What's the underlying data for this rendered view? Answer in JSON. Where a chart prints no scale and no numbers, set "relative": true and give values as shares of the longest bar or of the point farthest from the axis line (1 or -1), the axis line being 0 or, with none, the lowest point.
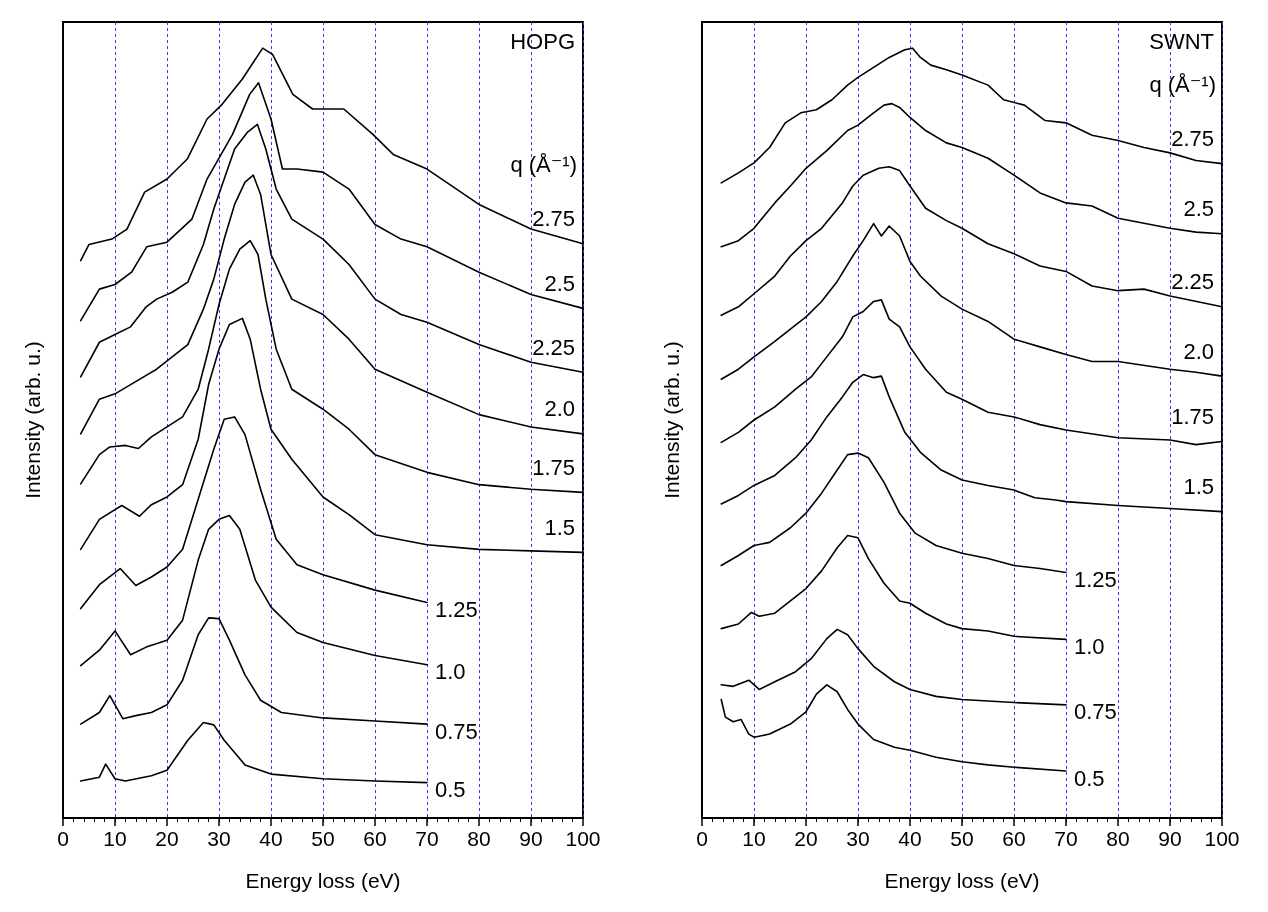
{
  "chart_data": [
    {
      "type": "line",
      "title": "HOPG",
      "xlabel": "Energy loss (eV)",
      "ylabel": "Intensity (arb. u.)",
      "legend_title": "q (Å⁻¹)",
      "relative": true,
      "xlim": [
        0,
        100
      ],
      "xticks": [
        0,
        10,
        20,
        30,
        40,
        50,
        60,
        70,
        80,
        90,
        100
      ],
      "grid": "x",
      "marker": "none",
      "line_style": "solid",
      "series": [
        {
          "name": "0.5",
          "color": "#000000",
          "x": [
            3.4,
            7,
            8.2,
            10,
            12,
            17,
            20,
            24,
            27,
            29,
            31,
            35,
            40,
            50,
            60,
            70
          ],
          "values": [
            0.048,
            0.053,
            0.07,
            0.051,
            0.048,
            0.055,
            0.062,
            0.101,
            0.124,
            0.121,
            0.101,
            0.069,
            0.057,
            0.051,
            0.048,
            0.046
          ]
        },
        {
          "name": "0.75",
          "color": "#000000",
          "x": [
            3.4,
            7,
            9,
            11.5,
            14,
            17,
            20,
            23,
            26,
            28,
            30,
            32,
            35,
            38,
            42,
            50,
            60,
            70
          ],
          "values": [
            0.122,
            0.137,
            0.159,
            0.129,
            0.133,
            0.137,
            0.147,
            0.179,
            0.238,
            0.26,
            0.259,
            0.231,
            0.186,
            0.153,
            0.137,
            0.13,
            0.126,
            0.122
          ]
        },
        {
          "name": "1.0",
          "color": "#000000",
          "x": [
            3.4,
            7,
            10,
            13,
            16,
            20,
            23,
            26,
            28,
            30,
            32,
            34,
            37,
            40,
            45,
            50,
            60,
            70
          ],
          "values": [
            0.198,
            0.218,
            0.243,
            0.212,
            0.222,
            0.231,
            0.257,
            0.335,
            0.375,
            0.388,
            0.393,
            0.375,
            0.309,
            0.274,
            0.241,
            0.228,
            0.211,
            0.199
          ]
        },
        {
          "name": "1.25",
          "color": "#000000",
          "x": [
            3.4,
            7,
            11,
            14,
            17,
            20,
            23,
            26,
            29,
            31,
            33,
            35,
            38,
            41,
            45,
            50,
            60,
            70
          ],
          "values": [
            0.272,
            0.303,
            0.324,
            0.302,
            0.313,
            0.326,
            0.349,
            0.414,
            0.479,
            0.518,
            0.521,
            0.498,
            0.427,
            0.362,
            0.329,
            0.316,
            0.296,
            0.28
          ]
        },
        {
          "name": "1.5",
          "color": "#000000",
          "x": [
            3.4,
            7,
            11.3,
            14.7,
            17,
            20,
            23,
            26,
            28,
            30,
            32,
            34.5,
            36,
            38,
            40,
            44,
            50,
            55,
            60,
            70,
            80,
            90,
            100
          ],
          "values": [
            0.349,
            0.388,
            0.406,
            0.392,
            0.407,
            0.417,
            0.433,
            0.492,
            0.563,
            0.609,
            0.641,
            0.649,
            0.622,
            0.557,
            0.505,
            0.466,
            0.417,
            0.394,
            0.368,
            0.355,
            0.349,
            0.347,
            0.345
          ]
        },
        {
          "name": "1.75",
          "color": "#000000",
          "x": [
            3.4,
            7,
            9,
            12,
            14.5,
            17,
            20,
            23,
            26,
            28,
            30,
            32,
            34,
            36,
            37.5,
            39,
            41,
            44,
            50,
            55,
            60,
            70,
            80,
            90,
            100
          ],
          "values": [
            0.434,
            0.472,
            0.482,
            0.484,
            0.48,
            0.495,
            0.508,
            0.521,
            0.557,
            0.609,
            0.667,
            0.713,
            0.739,
            0.75,
            0.732,
            0.674,
            0.609,
            0.557,
            0.531,
            0.505,
            0.472,
            0.449,
            0.433,
            0.427,
            0.423
          ]
        },
        {
          "name": "2.0",
          "color": "#000000",
          "x": [
            3.4,
            7,
            10,
            13,
            16,
            18,
            21,
            24,
            27,
            29,
            31,
            33,
            35,
            36.6,
            38,
            40,
            44,
            50,
            55,
            60,
            70,
            80,
            90,
            100
          ],
          "values": [
            0.499,
            0.544,
            0.551,
            0.563,
            0.575,
            0.583,
            0.599,
            0.615,
            0.661,
            0.7,
            0.752,
            0.797,
            0.826,
            0.835,
            0.81,
            0.732,
            0.674,
            0.654,
            0.622,
            0.583,
            0.553,
            0.524,
            0.508,
            0.499
          ]
        },
        {
          "name": "2.25",
          "color": "#000000",
          "x": [
            3.4,
            7,
            10,
            13,
            16,
            18,
            21,
            24,
            27,
            29,
            31,
            33,
            35.5,
            37.4,
            39,
            41,
            44,
            50,
            55,
            60,
            65,
            70,
            80,
            90,
            100
          ],
          "values": [
            0.573,
            0.618,
            0.628,
            0.638,
            0.664,
            0.674,
            0.683,
            0.696,
            0.745,
            0.791,
            0.83,
            0.869,
            0.891,
            0.901,
            0.869,
            0.817,
            0.778,
            0.752,
            0.719,
            0.674,
            0.654,
            0.644,
            0.615,
            0.592,
            0.579
          ]
        },
        {
          "name": "2.5",
          "color": "#000000",
          "x": [
            3.4,
            7,
            10,
            13.2,
            16.1,
            20,
            24.8,
            27.7,
            32.6,
            35.9,
            37.6,
            40,
            42.2,
            45,
            50,
            55,
            60,
            65,
            70,
            80,
            90,
            100
          ],
          "values": [
            0.646,
            0.687,
            0.693,
            0.709,
            0.742,
            0.748,
            0.778,
            0.83,
            0.888,
            0.94,
            0.955,
            0.908,
            0.843,
            0.843,
            0.839,
            0.817,
            0.771,
            0.752,
            0.742,
            0.709,
            0.68,
            0.662
          ]
        },
        {
          "name": "2.75",
          "color": "#000000",
          "x": [
            3.4,
            5,
            9.4,
            12.3,
            15.7,
            20,
            23.9,
            27.7,
            30.6,
            34.5,
            38.4,
            40.3,
            44.2,
            48,
            54,
            59.6,
            63.5,
            70,
            80,
            90,
            100
          ],
          "values": [
            0.724,
            0.745,
            0.752,
            0.765,
            0.813,
            0.83,
            0.856,
            0.908,
            0.927,
            0.96,
            1,
            0.992,
            0.94,
            0.921,
            0.921,
            0.888,
            0.862,
            0.843,
            0.797,
            0.765,
            0.746
          ]
        }
      ]
    },
    {
      "type": "line",
      "title": "SWNT",
      "xlabel": "Energy loss (eV)",
      "ylabel": "Intensity (arb. u.)",
      "legend_title": "q (Å⁻¹)",
      "relative": true,
      "xlim": [
        0,
        100
      ],
      "xticks": [
        0,
        10,
        20,
        30,
        40,
        50,
        60,
        70,
        80,
        90,
        100
      ],
      "grid": "x",
      "marker": "none",
      "line_style": "solid",
      "series": [
        {
          "name": "0.5",
          "color": "#000000",
          "x": [
            3.7,
            4.5,
            6,
            7.5,
            9,
            10,
            13,
            17,
            20,
            22,
            24,
            26,
            28,
            30,
            33,
            37,
            40,
            45,
            50,
            55,
            60,
            70
          ],
          "values": [
            0.154,
            0.131,
            0.125,
            0.128,
            0.109,
            0.105,
            0.109,
            0.122,
            0.138,
            0.161,
            0.173,
            0.164,
            0.141,
            0.122,
            0.102,
            0.092,
            0.088,
            0.079,
            0.073,
            0.069,
            0.066,
            0.061
          ]
        },
        {
          "name": "0.75",
          "color": "#000000",
          "x": [
            3.7,
            6,
            9,
            11,
            14,
            18,
            21,
            24,
            26,
            28,
            30,
            33,
            37,
            40,
            45,
            50,
            60,
            70
          ],
          "values": [
            0.173,
            0.171,
            0.179,
            0.167,
            0.177,
            0.19,
            0.207,
            0.233,
            0.245,
            0.238,
            0.22,
            0.197,
            0.177,
            0.167,
            0.158,
            0.154,
            0.15,
            0.147
          ]
        },
        {
          "name": "1.0",
          "color": "#000000",
          "x": [
            3.7,
            7,
            9.5,
            11,
            14,
            17,
            20,
            23,
            26,
            28,
            30,
            32,
            35,
            38,
            40,
            43,
            47,
            50,
            55,
            60,
            70
          ],
          "values": [
            0.246,
            0.252,
            0.267,
            0.262,
            0.266,
            0.282,
            0.298,
            0.321,
            0.351,
            0.367,
            0.364,
            0.337,
            0.305,
            0.282,
            0.279,
            0.266,
            0.252,
            0.246,
            0.243,
            0.236,
            0.232
          ]
        },
        {
          "name": "1.25",
          "color": "#000000",
          "x": [
            3.7,
            7,
            10,
            13,
            17,
            20,
            23,
            26,
            28,
            30,
            32,
            35,
            38,
            41,
            45,
            50,
            55,
            60,
            65,
            70
          ],
          "values": [
            0.328,
            0.341,
            0.354,
            0.358,
            0.377,
            0.396,
            0.422,
            0.452,
            0.472,
            0.474,
            0.468,
            0.436,
            0.396,
            0.37,
            0.354,
            0.344,
            0.337,
            0.328,
            0.324,
            0.319
          ]
        },
        {
          "name": "1.5",
          "color": "#000000",
          "x": [
            3.7,
            7,
            10,
            14,
            18,
            21,
            24,
            27,
            29,
            31,
            33,
            34.5,
            36,
            39,
            42,
            46,
            50,
            55,
            60,
            64,
            68,
            70,
            80,
            90,
            100
          ],
          "values": [
            0.408,
            0.419,
            0.432,
            0.445,
            0.468,
            0.491,
            0.521,
            0.547,
            0.566,
            0.576,
            0.572,
            0.574,
            0.547,
            0.501,
            0.475,
            0.452,
            0.439,
            0.432,
            0.426,
            0.416,
            0.413,
            0.411,
            0.406,
            0.402,
            0.398
          ]
        },
        {
          "name": "1.75",
          "color": "#000000",
          "x": [
            3.7,
            7,
            10,
            14,
            18,
            21,
            24,
            27,
            29,
            31,
            33,
            34.5,
            36,
            38,
            40,
            43,
            47,
            50,
            55,
            60,
            65,
            70,
            80,
            90,
            95,
            100
          ],
          "values": [
            0.488,
            0.501,
            0.517,
            0.534,
            0.557,
            0.573,
            0.599,
            0.625,
            0.651,
            0.658,
            0.671,
            0.673,
            0.648,
            0.638,
            0.612,
            0.583,
            0.553,
            0.544,
            0.527,
            0.521,
            0.511,
            0.504,
            0.494,
            0.491,
            0.485,
            0.489
          ]
        },
        {
          "name": "2.0",
          "color": "#000000",
          "x": [
            3.7,
            7,
            10,
            14,
            17,
            20,
            23,
            26,
            29,
            31,
            33,
            34.5,
            36,
            38,
            40,
            42,
            46,
            50,
            55,
            60,
            65,
            70,
            75,
            80,
            90,
            95,
            100
          ],
          "values": [
            0.57,
            0.583,
            0.599,
            0.619,
            0.635,
            0.651,
            0.671,
            0.697,
            0.73,
            0.75,
            0.772,
            0.756,
            0.769,
            0.756,
            0.723,
            0.704,
            0.678,
            0.661,
            0.645,
            0.622,
            0.612,
            0.602,
            0.593,
            0.593,
            0.583,
            0.579,
            0.574
          ]
        },
        {
          "name": "2.25",
          "color": "#000000",
          "x": [
            3.7,
            7,
            10,
            14,
            17,
            20,
            23,
            27,
            29,
            31,
            34,
            36,
            38,
            40,
            43,
            47,
            50,
            55,
            60,
            65,
            70,
            75,
            80,
            85,
            90,
            100
          ],
          "values": [
            0.653,
            0.664,
            0.681,
            0.704,
            0.73,
            0.75,
            0.766,
            0.799,
            0.821,
            0.835,
            0.844,
            0.846,
            0.841,
            0.821,
            0.792,
            0.776,
            0.766,
            0.746,
            0.733,
            0.717,
            0.71,
            0.691,
            0.685,
            0.687,
            0.678,
            0.664
          ]
        },
        {
          "name": "2.5",
          "color": "#000000",
          "x": [
            3.7,
            7,
            10,
            14,
            17,
            20,
            24,
            28,
            30,
            33,
            35,
            36.5,
            38,
            40,
            43,
            47,
            50,
            55,
            60,
            65,
            70,
            75,
            80,
            90,
            95,
            100
          ],
          "values": [
            0.742,
            0.75,
            0.766,
            0.799,
            0.821,
            0.844,
            0.867,
            0.893,
            0.9,
            0.916,
            0.926,
            0.928,
            0.923,
            0.91,
            0.893,
            0.877,
            0.871,
            0.857,
            0.835,
            0.812,
            0.799,
            0.795,
            0.779,
            0.766,
            0.761,
            0.759
          ]
        },
        {
          "name": "2.75",
          "color": "#000000",
          "x": [
            3.7,
            7,
            10,
            13,
            16,
            19,
            22,
            25,
            28,
            30,
            33,
            36,
            39,
            40.5,
            42,
            44,
            47,
            50,
            55,
            58,
            62,
            66,
            70,
            75,
            80,
            85,
            90,
            95,
            100
          ],
          "values": [
            0.825,
            0.838,
            0.851,
            0.871,
            0.903,
            0.916,
            0.92,
            0.933,
            0.952,
            0.962,
            0.975,
            0.988,
            0.998,
            1,
            0.988,
            0.978,
            0.972,
            0.965,
            0.952,
            0.933,
            0.926,
            0.906,
            0.903,
            0.887,
            0.88,
            0.871,
            0.864,
            0.854,
            0.85
          ]
        }
      ]
    }
  ]
}
